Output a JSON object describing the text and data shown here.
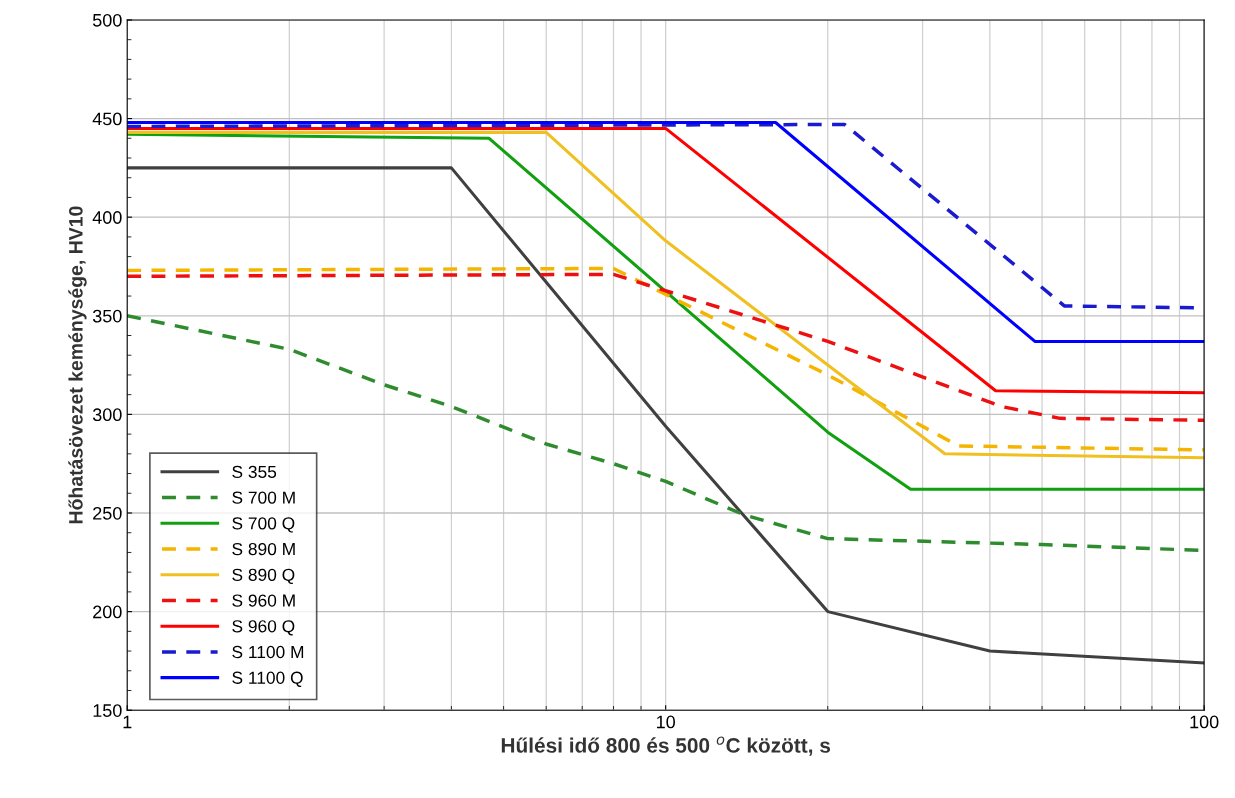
{
  "chart_data": {
    "type": "line",
    "xlabel": "Hűlési idő 800 és 500 $^{o}$C között, s",
    "ylabel": "Hőhatásövezet keménysége, HV10",
    "log": "x",
    "xlim": [
      1,
      100
    ],
    "xticks": [
      1,
      10,
      100
    ],
    "ylim": [
      150,
      500
    ],
    "yticks": [
      150,
      200,
      250,
      300,
      350,
      400,
      450,
      500
    ],
    "grid": true,
    "legend": "bottom left",
    "marker": "none",
    "series": [
      {
        "name": "S 355",
        "color": "#404040",
        "line_style": "solid",
        "x": [
          1,
          4,
          10,
          20,
          40,
          100
        ],
        "values": [
          425,
          425,
          294,
          200,
          180,
          174
        ]
      },
      {
        "name": "S 700 M",
        "color": "#2e8b2e",
        "line_style": "dashed",
        "x": [
          1,
          2,
          3,
          4,
          6,
          8,
          10,
          14,
          20,
          50,
          100
        ],
        "values": [
          350,
          333,
          315,
          304,
          285,
          275,
          266,
          249,
          237,
          234,
          231
        ]
      },
      {
        "name": "S 700 Q",
        "color": "#10a010",
        "line_style": "solid",
        "x": [
          1,
          4.7,
          20,
          28.5,
          100
        ],
        "values": [
          442,
          440,
          291,
          262,
          262
        ]
      },
      {
        "name": "S 890 M",
        "color": "#f5b400",
        "line_style": "dashed",
        "x": [
          1,
          8,
          20,
          35,
          100
        ],
        "values": [
          373,
          374,
          320,
          284,
          282
        ]
      },
      {
        "name": "S 890 Q",
        "color": "#f0c020",
        "line_style": "solid",
        "x": [
          1,
          6,
          10,
          20,
          33,
          100
        ],
        "values": [
          443,
          443,
          388,
          325,
          280,
          278
        ]
      },
      {
        "name": "S 960 M",
        "color": "#ee1010",
        "line_style": "dashed",
        "x": [
          1,
          8,
          20,
          42,
          54,
          100
        ],
        "values": [
          370,
          371,
          337,
          304,
          298,
          297
        ]
      },
      {
        "name": "S 960 Q",
        "color": "#ff0000",
        "line_style": "solid",
        "x": [
          1,
          10,
          41,
          100
        ],
        "values": [
          445,
          445,
          312,
          311
        ]
      },
      {
        "name": "S 1100 M",
        "color": "#1a1ad0",
        "line_style": "dashed",
        "x": [
          1,
          21.5,
          55,
          100
        ],
        "values": [
          446,
          447,
          355,
          354
        ]
      },
      {
        "name": "S 1100 Q",
        "color": "#0000ff",
        "line_style": "solid",
        "x": [
          1,
          16,
          48.5,
          100
        ],
        "values": [
          448,
          448,
          337,
          337
        ]
      }
    ]
  }
}
